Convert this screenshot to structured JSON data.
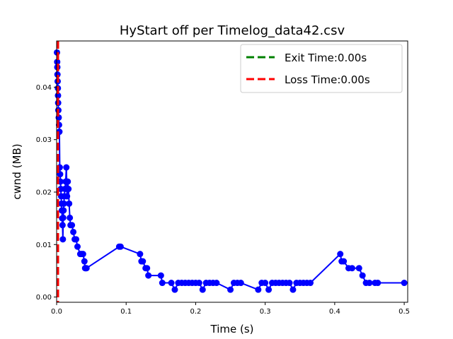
{
  "chart_data": {
    "type": "line",
    "title": "HyStart off per Timelog_data42.csv",
    "xlabel": "Time (s)",
    "ylabel": "cwnd (MB)",
    "xlim": [
      0,
      0.505
    ],
    "ylim": [
      -0.001,
      0.0488
    ],
    "xticks": [
      0.0,
      0.1,
      0.2,
      0.3,
      0.4,
      0.5
    ],
    "xtick_labels": [
      "0.0",
      "0.1",
      "0.2",
      "0.3",
      "0.4",
      "0.5"
    ],
    "yticks": [
      0.0,
      0.01,
      0.02,
      0.03,
      0.04
    ],
    "ytick_labels": [
      "0.00",
      "0.01",
      "0.02",
      "0.03",
      "0.04"
    ],
    "grid": false,
    "legend_position": "top-right",
    "series": [
      {
        "color": "#0000ff",
        "marker": "circle",
        "x": [
          0.0005,
          0.0008,
          0.001,
          0.0012,
          0.0015,
          0.0018,
          0.002,
          0.0022,
          0.0025,
          0.003,
          0.0035,
          0.004,
          0.0045,
          0.005,
          0.0055,
          0.006,
          0.0065,
          0.007,
          0.0075,
          0.008,
          0.0085,
          0.009,
          0.0095,
          0.01,
          0.0105,
          0.011,
          0.012,
          0.013,
          0.014,
          0.015,
          0.016,
          0.017,
          0.018,
          0.019,
          0.02,
          0.022,
          0.024,
          0.026,
          0.028,
          0.03,
          0.034,
          0.036,
          0.038,
          0.04,
          0.041,
          0.042,
          0.043,
          0.09,
          0.092,
          0.12,
          0.122,
          0.124,
          0.128,
          0.13,
          0.132,
          0.15,
          0.152,
          0.165,
          0.17,
          0.175,
          0.18,
          0.185,
          0.19,
          0.195,
          0.2,
          0.205,
          0.21,
          0.215,
          0.22,
          0.225,
          0.23,
          0.25,
          0.255,
          0.26,
          0.265,
          0.29,
          0.295,
          0.3,
          0.305,
          0.31,
          0.315,
          0.32,
          0.325,
          0.33,
          0.335,
          0.34,
          0.345,
          0.35,
          0.355,
          0.36,
          0.365,
          0.408,
          0.41,
          0.413,
          0.42,
          0.425,
          0.435,
          0.44,
          0.445,
          0.45,
          0.458,
          0.462,
          0.5
        ],
        "y": [
          0.0466,
          0.0448,
          0.0438,
          0.0424,
          0.0411,
          0.0398,
          0.0384,
          0.037,
          0.0356,
          0.0342,
          0.0328,
          0.0315,
          0.0247,
          0.0234,
          0.022,
          0.0206,
          0.0192,
          0.0178,
          0.0165,
          0.015,
          0.0137,
          0.011,
          0.0151,
          0.0165,
          0.0178,
          0.0192,
          0.0206,
          0.022,
          0.0247,
          0.0192,
          0.022,
          0.0206,
          0.0178,
          0.0151,
          0.0137,
          0.0137,
          0.0124,
          0.011,
          0.011,
          0.0096,
          0.0082,
          0.0082,
          0.0082,
          0.0068,
          0.0055,
          0.0055,
          0.0055,
          0.0096,
          0.0096,
          0.0082,
          0.0068,
          0.0068,
          0.0055,
          0.0055,
          0.0041,
          0.0041,
          0.0027,
          0.0027,
          0.0014,
          0.0027,
          0.0027,
          0.0027,
          0.0027,
          0.0027,
          0.0027,
          0.0027,
          0.0014,
          0.0027,
          0.0027,
          0.0027,
          0.0027,
          0.0014,
          0.0027,
          0.0027,
          0.0027,
          0.0014,
          0.0027,
          0.0027,
          0.0014,
          0.0027,
          0.0027,
          0.0027,
          0.0027,
          0.0027,
          0.0027,
          0.0014,
          0.0027,
          0.0027,
          0.0027,
          0.0027,
          0.0027,
          0.0082,
          0.0068,
          0.0068,
          0.0055,
          0.0055,
          0.0055,
          0.0041,
          0.0027,
          0.0027,
          0.0027,
          0.0027,
          0.0027
        ]
      }
    ],
    "vlines": [
      {
        "name": "Exit Time:0.00s",
        "x": 0.002,
        "color": "#008000",
        "style": "dashed"
      },
      {
        "name": "Loss Time:0.00s",
        "x": 0.002,
        "color": "#ff0000",
        "style": "dashed"
      }
    ]
  }
}
